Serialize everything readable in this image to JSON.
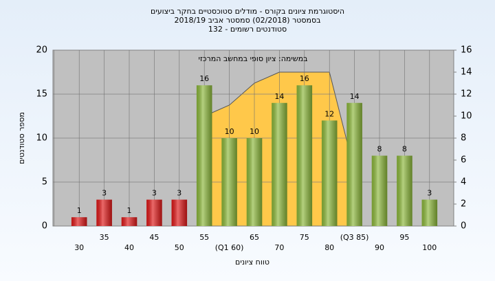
{
  "chart_data": {
    "type": "bar",
    "title": "היסטוגרמת ציונים בקורס - מודלים סטוכסטיים בחקר ביצועים",
    "subtitle": "בסמסטר  (02/2018)  סמסטר אביב 2018/19",
    "note": "סטודנטים רשומים - 132",
    "xlabel": "טווח ציונים",
    "ylabel": "מספר סטודנטים",
    "categories": [
      "30",
      "35",
      "40",
      "45",
      "50",
      "55",
      "(Q1 60)",
      "65",
      "70",
      "75",
      "80",
      "(Q3 85)",
      "90",
      "95",
      "100"
    ],
    "values": [
      1,
      3,
      1,
      3,
      3,
      16,
      10,
      10,
      14,
      16,
      12,
      14,
      8,
      8,
      3
    ],
    "colors": [
      "#e01818",
      "#e01818",
      "#e01818",
      "#e01818",
      "#e01818",
      "#8cb83a",
      "#8cb83a",
      "#8cb83a",
      "#8cb83a",
      "#8cb83a",
      "#8cb83a",
      "#8cb83a",
      "#8cb83a",
      "#8cb83a",
      "#8cb83a"
    ],
    "ylim": [
      0,
      20
    ],
    "yticks": [
      0,
      5,
      10,
      15,
      20
    ],
    "y2lim": [
      0,
      16
    ],
    "y2ticks": [
      0,
      2,
      4,
      6,
      8,
      10,
      12,
      14,
      16
    ],
    "series": [
      {
        "name": "במשימה: ציון סופי במחשב המרכזי",
        "color": "#ffc84a",
        "axis": "y2",
        "values": [
          null,
          null,
          null,
          null,
          null,
          10,
          11,
          13,
          14,
          14,
          14,
          5,
          null,
          null,
          null
        ]
      }
    ],
    "grid": true
  }
}
